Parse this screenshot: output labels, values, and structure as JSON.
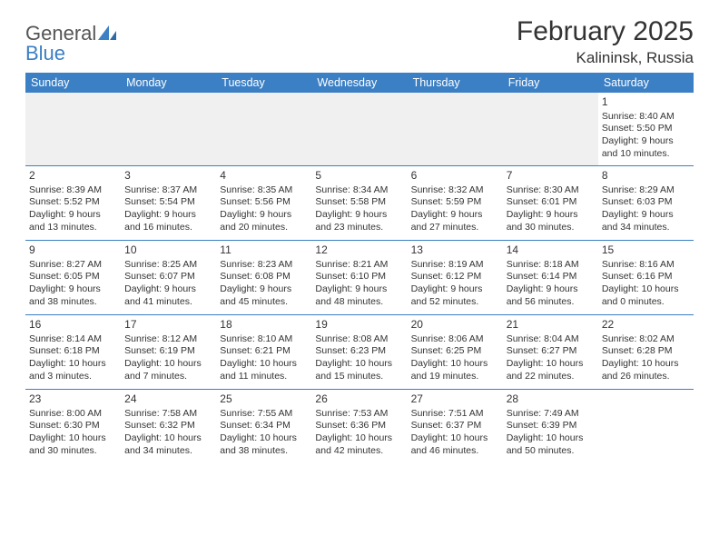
{
  "brand": {
    "part1": "General",
    "part2": "Blue"
  },
  "title": "February 2025",
  "location": "Kalininsk, Russia",
  "columns": [
    "Sunday",
    "Monday",
    "Tuesday",
    "Wednesday",
    "Thursday",
    "Friday",
    "Saturday"
  ],
  "colors": {
    "header_bg": "#3b7fc4",
    "header_fg": "#ffffff",
    "border": "#3b7fc4",
    "empty_bg": "#f0f0f0",
    "text": "#333333",
    "logo_gray": "#555555",
    "logo_blue": "#3b7fc4"
  },
  "fonts": {
    "title_size_pt": 22,
    "location_size_pt": 13,
    "header_size_pt": 9,
    "cell_size_pt": 8
  },
  "weeks": [
    [
      null,
      null,
      null,
      null,
      null,
      null,
      {
        "n": "1",
        "sr": "Sunrise: 8:40 AM",
        "ss": "Sunset: 5:50 PM",
        "d1": "Daylight: 9 hours",
        "d2": "and 10 minutes."
      }
    ],
    [
      {
        "n": "2",
        "sr": "Sunrise: 8:39 AM",
        "ss": "Sunset: 5:52 PM",
        "d1": "Daylight: 9 hours",
        "d2": "and 13 minutes."
      },
      {
        "n": "3",
        "sr": "Sunrise: 8:37 AM",
        "ss": "Sunset: 5:54 PM",
        "d1": "Daylight: 9 hours",
        "d2": "and 16 minutes."
      },
      {
        "n": "4",
        "sr": "Sunrise: 8:35 AM",
        "ss": "Sunset: 5:56 PM",
        "d1": "Daylight: 9 hours",
        "d2": "and 20 minutes."
      },
      {
        "n": "5",
        "sr": "Sunrise: 8:34 AM",
        "ss": "Sunset: 5:58 PM",
        "d1": "Daylight: 9 hours",
        "d2": "and 23 minutes."
      },
      {
        "n": "6",
        "sr": "Sunrise: 8:32 AM",
        "ss": "Sunset: 5:59 PM",
        "d1": "Daylight: 9 hours",
        "d2": "and 27 minutes."
      },
      {
        "n": "7",
        "sr": "Sunrise: 8:30 AM",
        "ss": "Sunset: 6:01 PM",
        "d1": "Daylight: 9 hours",
        "d2": "and 30 minutes."
      },
      {
        "n": "8",
        "sr": "Sunrise: 8:29 AM",
        "ss": "Sunset: 6:03 PM",
        "d1": "Daylight: 9 hours",
        "d2": "and 34 minutes."
      }
    ],
    [
      {
        "n": "9",
        "sr": "Sunrise: 8:27 AM",
        "ss": "Sunset: 6:05 PM",
        "d1": "Daylight: 9 hours",
        "d2": "and 38 minutes."
      },
      {
        "n": "10",
        "sr": "Sunrise: 8:25 AM",
        "ss": "Sunset: 6:07 PM",
        "d1": "Daylight: 9 hours",
        "d2": "and 41 minutes."
      },
      {
        "n": "11",
        "sr": "Sunrise: 8:23 AM",
        "ss": "Sunset: 6:08 PM",
        "d1": "Daylight: 9 hours",
        "d2": "and 45 minutes."
      },
      {
        "n": "12",
        "sr": "Sunrise: 8:21 AM",
        "ss": "Sunset: 6:10 PM",
        "d1": "Daylight: 9 hours",
        "d2": "and 48 minutes."
      },
      {
        "n": "13",
        "sr": "Sunrise: 8:19 AM",
        "ss": "Sunset: 6:12 PM",
        "d1": "Daylight: 9 hours",
        "d2": "and 52 minutes."
      },
      {
        "n": "14",
        "sr": "Sunrise: 8:18 AM",
        "ss": "Sunset: 6:14 PM",
        "d1": "Daylight: 9 hours",
        "d2": "and 56 minutes."
      },
      {
        "n": "15",
        "sr": "Sunrise: 8:16 AM",
        "ss": "Sunset: 6:16 PM",
        "d1": "Daylight: 10 hours",
        "d2": "and 0 minutes."
      }
    ],
    [
      {
        "n": "16",
        "sr": "Sunrise: 8:14 AM",
        "ss": "Sunset: 6:18 PM",
        "d1": "Daylight: 10 hours",
        "d2": "and 3 minutes."
      },
      {
        "n": "17",
        "sr": "Sunrise: 8:12 AM",
        "ss": "Sunset: 6:19 PM",
        "d1": "Daylight: 10 hours",
        "d2": "and 7 minutes."
      },
      {
        "n": "18",
        "sr": "Sunrise: 8:10 AM",
        "ss": "Sunset: 6:21 PM",
        "d1": "Daylight: 10 hours",
        "d2": "and 11 minutes."
      },
      {
        "n": "19",
        "sr": "Sunrise: 8:08 AM",
        "ss": "Sunset: 6:23 PM",
        "d1": "Daylight: 10 hours",
        "d2": "and 15 minutes."
      },
      {
        "n": "20",
        "sr": "Sunrise: 8:06 AM",
        "ss": "Sunset: 6:25 PM",
        "d1": "Daylight: 10 hours",
        "d2": "and 19 minutes."
      },
      {
        "n": "21",
        "sr": "Sunrise: 8:04 AM",
        "ss": "Sunset: 6:27 PM",
        "d1": "Daylight: 10 hours",
        "d2": "and 22 minutes."
      },
      {
        "n": "22",
        "sr": "Sunrise: 8:02 AM",
        "ss": "Sunset: 6:28 PM",
        "d1": "Daylight: 10 hours",
        "d2": "and 26 minutes."
      }
    ],
    [
      {
        "n": "23",
        "sr": "Sunrise: 8:00 AM",
        "ss": "Sunset: 6:30 PM",
        "d1": "Daylight: 10 hours",
        "d2": "and 30 minutes."
      },
      {
        "n": "24",
        "sr": "Sunrise: 7:58 AM",
        "ss": "Sunset: 6:32 PM",
        "d1": "Daylight: 10 hours",
        "d2": "and 34 minutes."
      },
      {
        "n": "25",
        "sr": "Sunrise: 7:55 AM",
        "ss": "Sunset: 6:34 PM",
        "d1": "Daylight: 10 hours",
        "d2": "and 38 minutes."
      },
      {
        "n": "26",
        "sr": "Sunrise: 7:53 AM",
        "ss": "Sunset: 6:36 PM",
        "d1": "Daylight: 10 hours",
        "d2": "and 42 minutes."
      },
      {
        "n": "27",
        "sr": "Sunrise: 7:51 AM",
        "ss": "Sunset: 6:37 PM",
        "d1": "Daylight: 10 hours",
        "d2": "and 46 minutes."
      },
      {
        "n": "28",
        "sr": "Sunrise: 7:49 AM",
        "ss": "Sunset: 6:39 PM",
        "d1": "Daylight: 10 hours",
        "d2": "and 50 minutes."
      },
      null
    ]
  ]
}
